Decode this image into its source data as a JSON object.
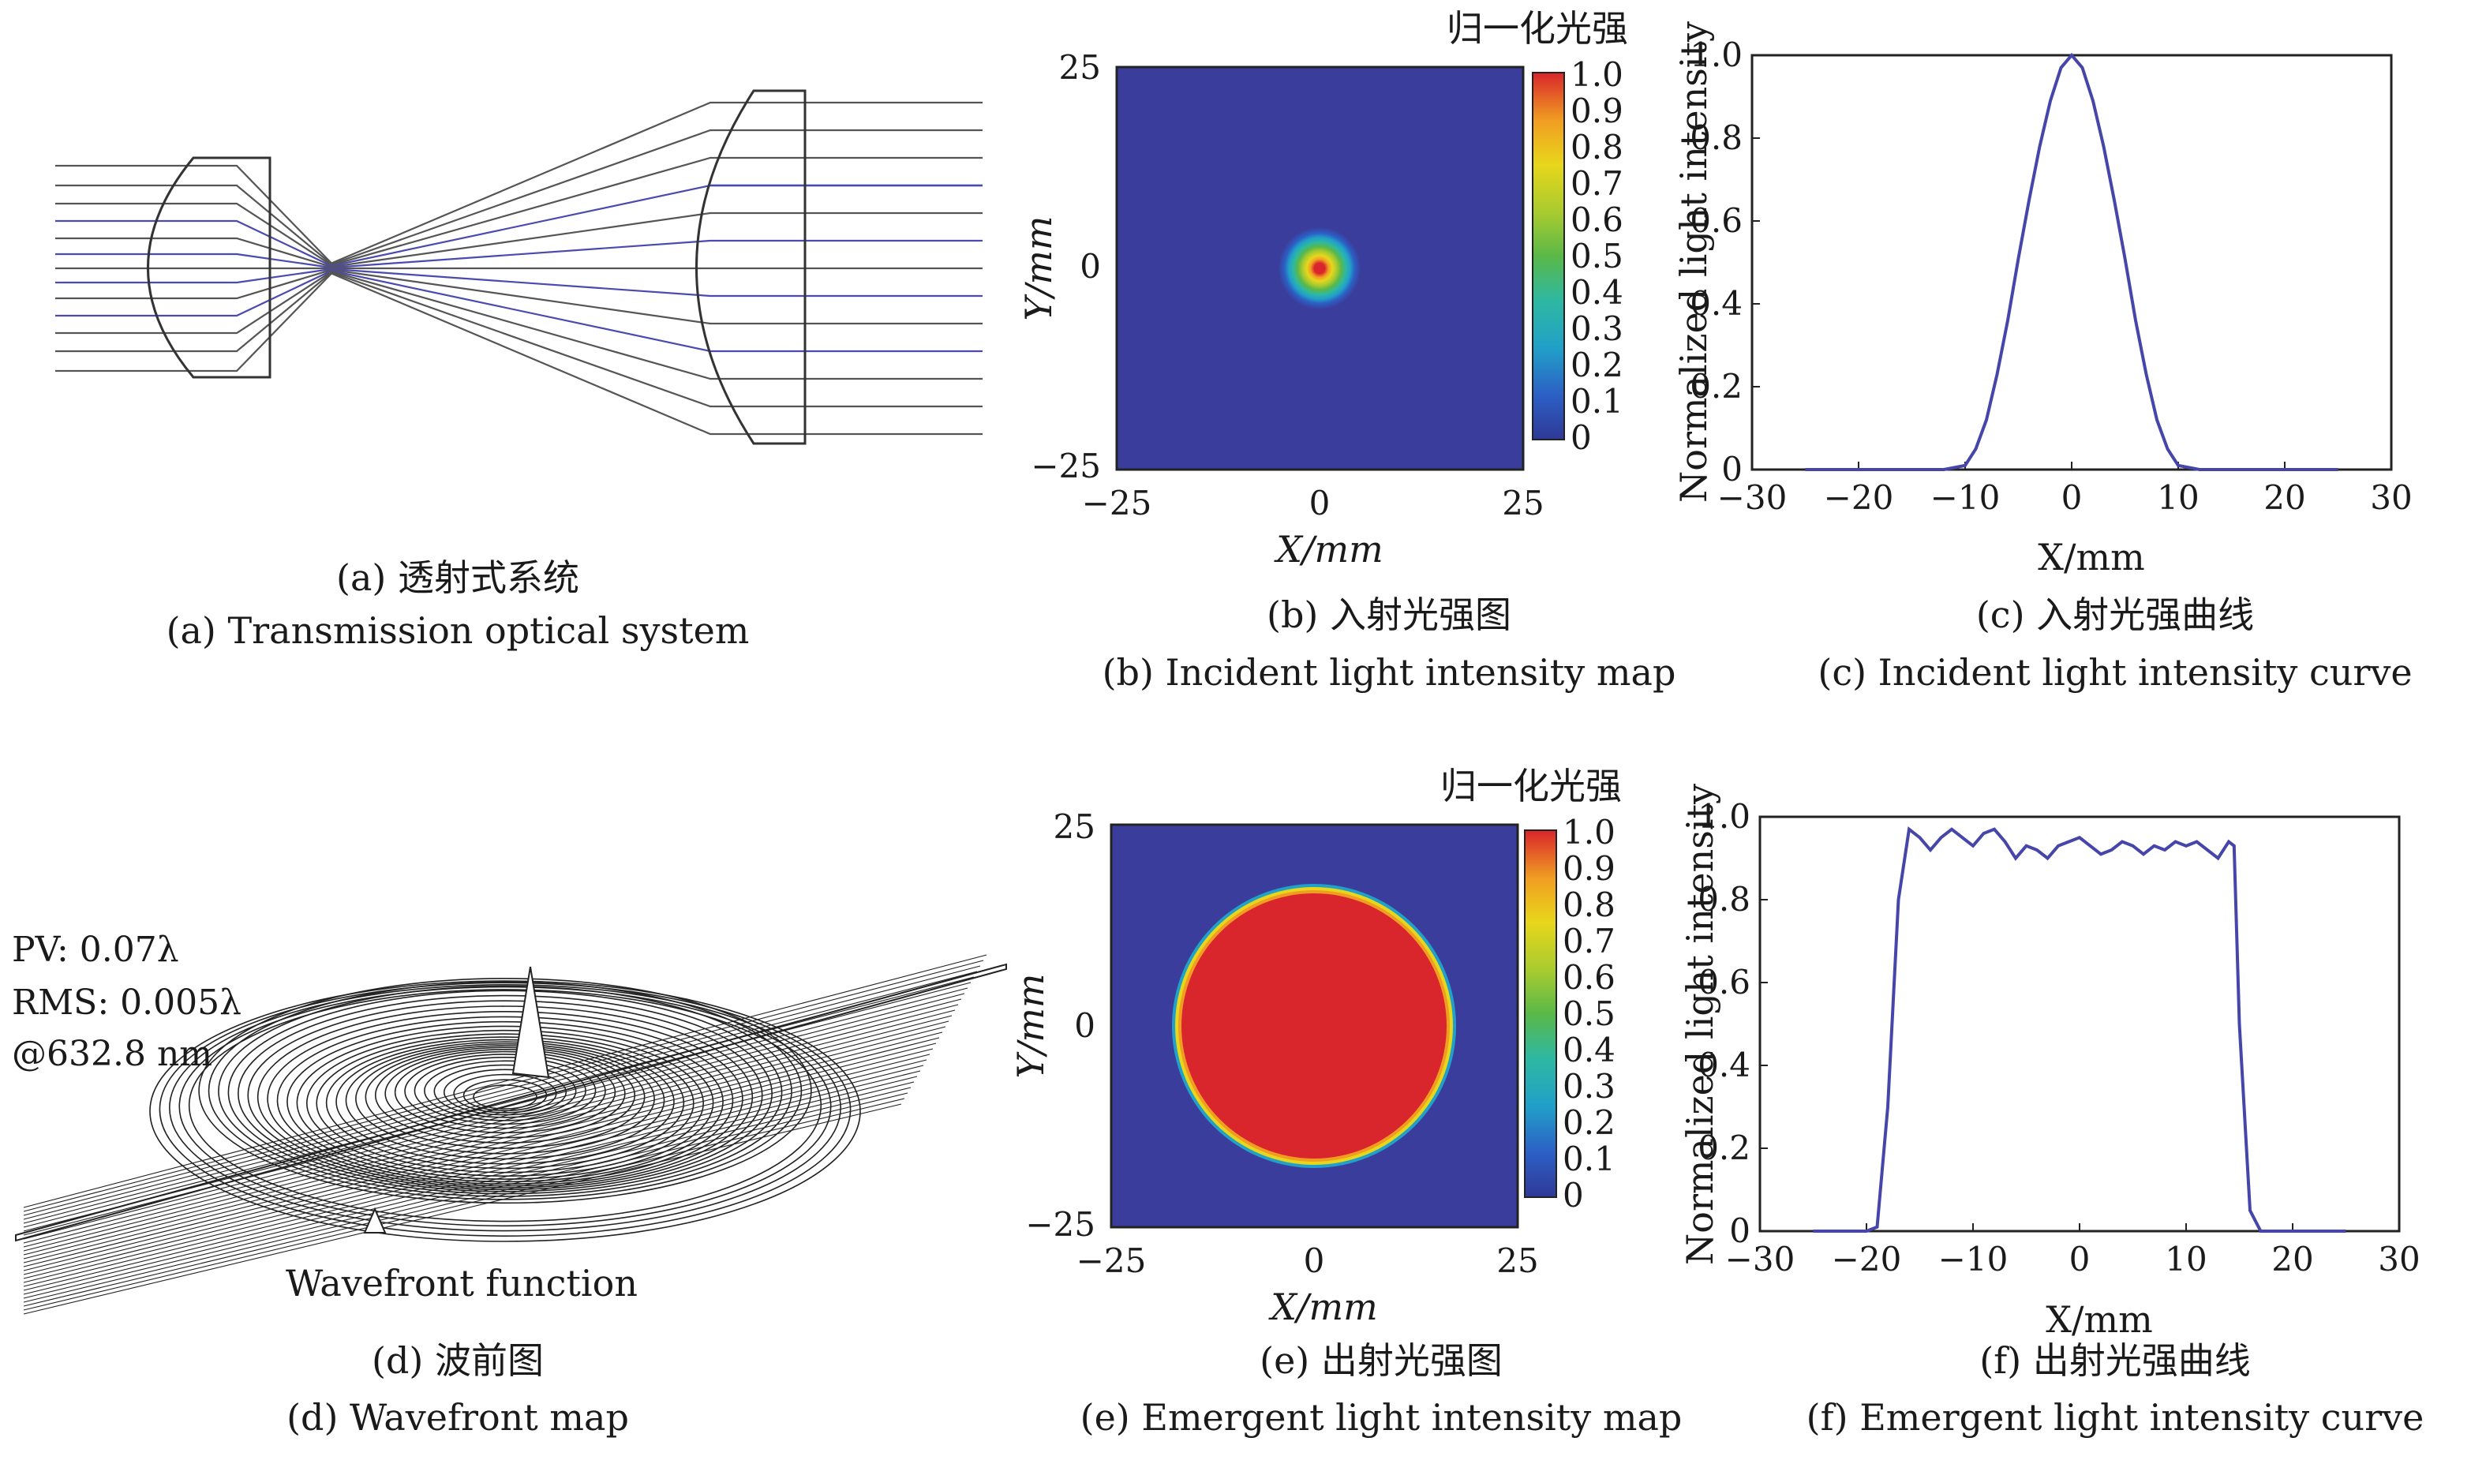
{
  "panels": {
    "a": {
      "caption_cn": "(a) 透射式系统",
      "caption_en": "(a) Transmission optical system"
    },
    "b": {
      "caption_cn": "(b) 入射光强图",
      "caption_en": "(b) Incident light intensity map",
      "colorbar_title": "归一化光强",
      "colorbar_ticks": [
        "1.0",
        "0.9",
        "0.8",
        "0.7",
        "0.6",
        "0.5",
        "0.4",
        "0.3",
        "0.2",
        "0.1",
        "0"
      ],
      "xlabel": "X/mm",
      "ylabel": "Y/mm",
      "x_ticks": [
        "−25",
        "0",
        "25"
      ],
      "y_ticks": [
        "25",
        "0",
        "−25"
      ]
    },
    "c": {
      "caption_cn": "(c) 入射光强曲线",
      "caption_en": "(c) Incident light intensity curve",
      "xlabel": "X/mm",
      "ylabel": "Normalized light intensity",
      "x_ticks": [
        "−30",
        "−20",
        "−10",
        "0",
        "10",
        "20",
        "30"
      ],
      "y_ticks": [
        "1.0",
        "0.8",
        "0.6",
        "0.4",
        "0.2",
        "0"
      ]
    },
    "d": {
      "caption_cn": "(d) 波前图",
      "caption_en": "(d) Wavefront map",
      "inner_title": "Wavefront function",
      "pv": "PV: 0.07λ",
      "rms": "RMS: 0.005λ",
      "wavelength": "@632.8 nm"
    },
    "e": {
      "caption_cn": "(e) 出射光强图",
      "caption_en": "(e) Emergent light intensity map",
      "colorbar_title": "归一化光强",
      "colorbar_ticks": [
        "1.0",
        "0.9",
        "0.8",
        "0.7",
        "0.6",
        "0.5",
        "0.4",
        "0.3",
        "0.2",
        "0.1",
        "0"
      ],
      "xlabel": "X/mm",
      "ylabel": "Y/mm",
      "x_ticks": [
        "−25",
        "0",
        "25"
      ],
      "y_ticks": [
        "25",
        "0",
        "−25"
      ]
    },
    "f": {
      "caption_cn": "(f) 出射光强曲线",
      "caption_en": "(f) Emergent light intensity curve",
      "xlabel": "X/mm",
      "ylabel": "Normalized light intensity",
      "x_ticks": [
        "−30",
        "−20",
        "−10",
        "0",
        "10",
        "20",
        "30"
      ],
      "y_ticks": [
        "1.0",
        "0.8",
        "0.6",
        "0.4",
        "0.2",
        "0"
      ]
    }
  },
  "colors": {
    "ray_gray": "#555555",
    "ray_blue": "#4a4ab0",
    "curve_blue": "#4646aa",
    "map_background": "#3b3d9c",
    "map_hot": "#d8262c"
  },
  "chart_data": [
    {
      "type": "heatmap",
      "panel": "b",
      "description_source": "Gaussian incident beam intensity",
      "xlim": [
        -25,
        25
      ],
      "ylim": [
        -25,
        25
      ],
      "zlim": [
        0,
        1.0
      ],
      "profile": "gaussian",
      "center": [
        0,
        0
      ],
      "sigma_mm": 4.2,
      "peak": 1.0
    },
    {
      "type": "line",
      "panel": "c",
      "xlim": [
        -30,
        30
      ],
      "ylim": [
        0,
        1.0
      ],
      "series": [
        {
          "x": [
            -25,
            -20,
            -15,
            -12,
            -10,
            -9,
            -8,
            -7,
            -6,
            -5,
            -4,
            -3,
            -2,
            -1,
            0,
            1,
            2,
            3,
            4,
            5,
            6,
            7,
            8,
            9,
            10,
            12,
            15,
            20,
            25
          ],
          "y": [
            0,
            0,
            0,
            0,
            0.01,
            0.05,
            0.12,
            0.23,
            0.36,
            0.51,
            0.65,
            0.78,
            0.89,
            0.97,
            1.0,
            0.97,
            0.89,
            0.78,
            0.65,
            0.51,
            0.36,
            0.23,
            0.12,
            0.05,
            0.01,
            0,
            0,
            0,
            0
          ]
        }
      ]
    },
    {
      "type": "heatmap",
      "panel": "e",
      "xlim": [
        -25,
        25
      ],
      "ylim": [
        -25,
        25
      ],
      "zlim": [
        0,
        1.0
      ],
      "profile": "flat-top",
      "center": [
        0,
        0
      ],
      "radius_mm": 16.5,
      "peak": 0.95
    },
    {
      "type": "line",
      "panel": "f",
      "xlim": [
        -30,
        30
      ],
      "ylim": [
        0,
        1.0
      ],
      "series": [
        {
          "x": [
            -25,
            -20,
            -19,
            -18,
            -17,
            -16,
            -15,
            -14,
            -13,
            -12,
            -11,
            -10,
            -9,
            -8,
            -7,
            -6,
            -5,
            -4,
            -3,
            -2,
            -1,
            0,
            1,
            2,
            3,
            4,
            5,
            6,
            7,
            8,
            9,
            10,
            11,
            12,
            13,
            14,
            14.5,
            15,
            16,
            17,
            20,
            25
          ],
          "y": [
            0,
            0,
            0.01,
            0.3,
            0.8,
            0.97,
            0.95,
            0.92,
            0.95,
            0.97,
            0.95,
            0.93,
            0.96,
            0.97,
            0.94,
            0.9,
            0.93,
            0.92,
            0.9,
            0.93,
            0.94,
            0.95,
            0.93,
            0.91,
            0.92,
            0.94,
            0.93,
            0.91,
            0.93,
            0.92,
            0.94,
            0.93,
            0.94,
            0.92,
            0.9,
            0.94,
            0.93,
            0.5,
            0.05,
            0,
            0,
            0
          ]
        }
      ]
    }
  ]
}
